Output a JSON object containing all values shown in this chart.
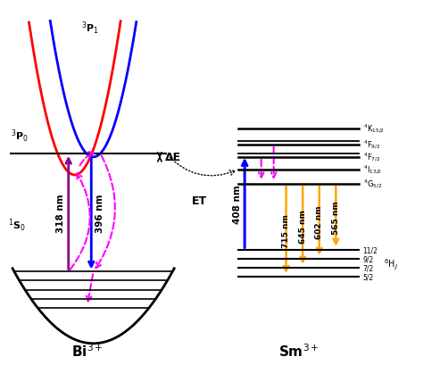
{
  "bg_color": "#ffffff",
  "bi_label": "Bi$^{3+}$",
  "sm_label": "Sm$^{3+}$",
  "bi_parabola_red_color": "#ff0000",
  "bi_parabola_blue_color": "#0000ff",
  "bi_ground_parabola_color": "#000000",
  "arrow_318_color": "#8B008B",
  "arrow_396_color": "#0000ff",
  "arrow_magenta_color": "#FF00FF",
  "arrow_orange_color": "#FFA500",
  "et_text": "ET",
  "delta_e_text": "ΔE",
  "label_318": "318 nm",
  "label_396": "396 nm",
  "label_408": "408 nm",
  "sm_emission_labels": [
    "715 nm",
    "645 nm",
    "602 nm",
    "565 nm"
  ],
  "sm_levels_right_labels": [
    "$^4$K$_{15/2}$",
    "$^4$F$_{9/2}$",
    "$^4$F$_{7/2}$",
    "$^4$I$_{13/2}$",
    "$^4$G$_{5/2}$"
  ],
  "sm_ground_sub_labels": [
    "11/2",
    "9/2",
    "7/2",
    "5/2"
  ],
  "sm_ground_main_label": "$^6$H$_J$",
  "bi_3P0_label": "$^3$P$_0$",
  "bi_3P1_label": "$^3$P$_1$",
  "bi_1S0_label": "$^1$S$_0$"
}
